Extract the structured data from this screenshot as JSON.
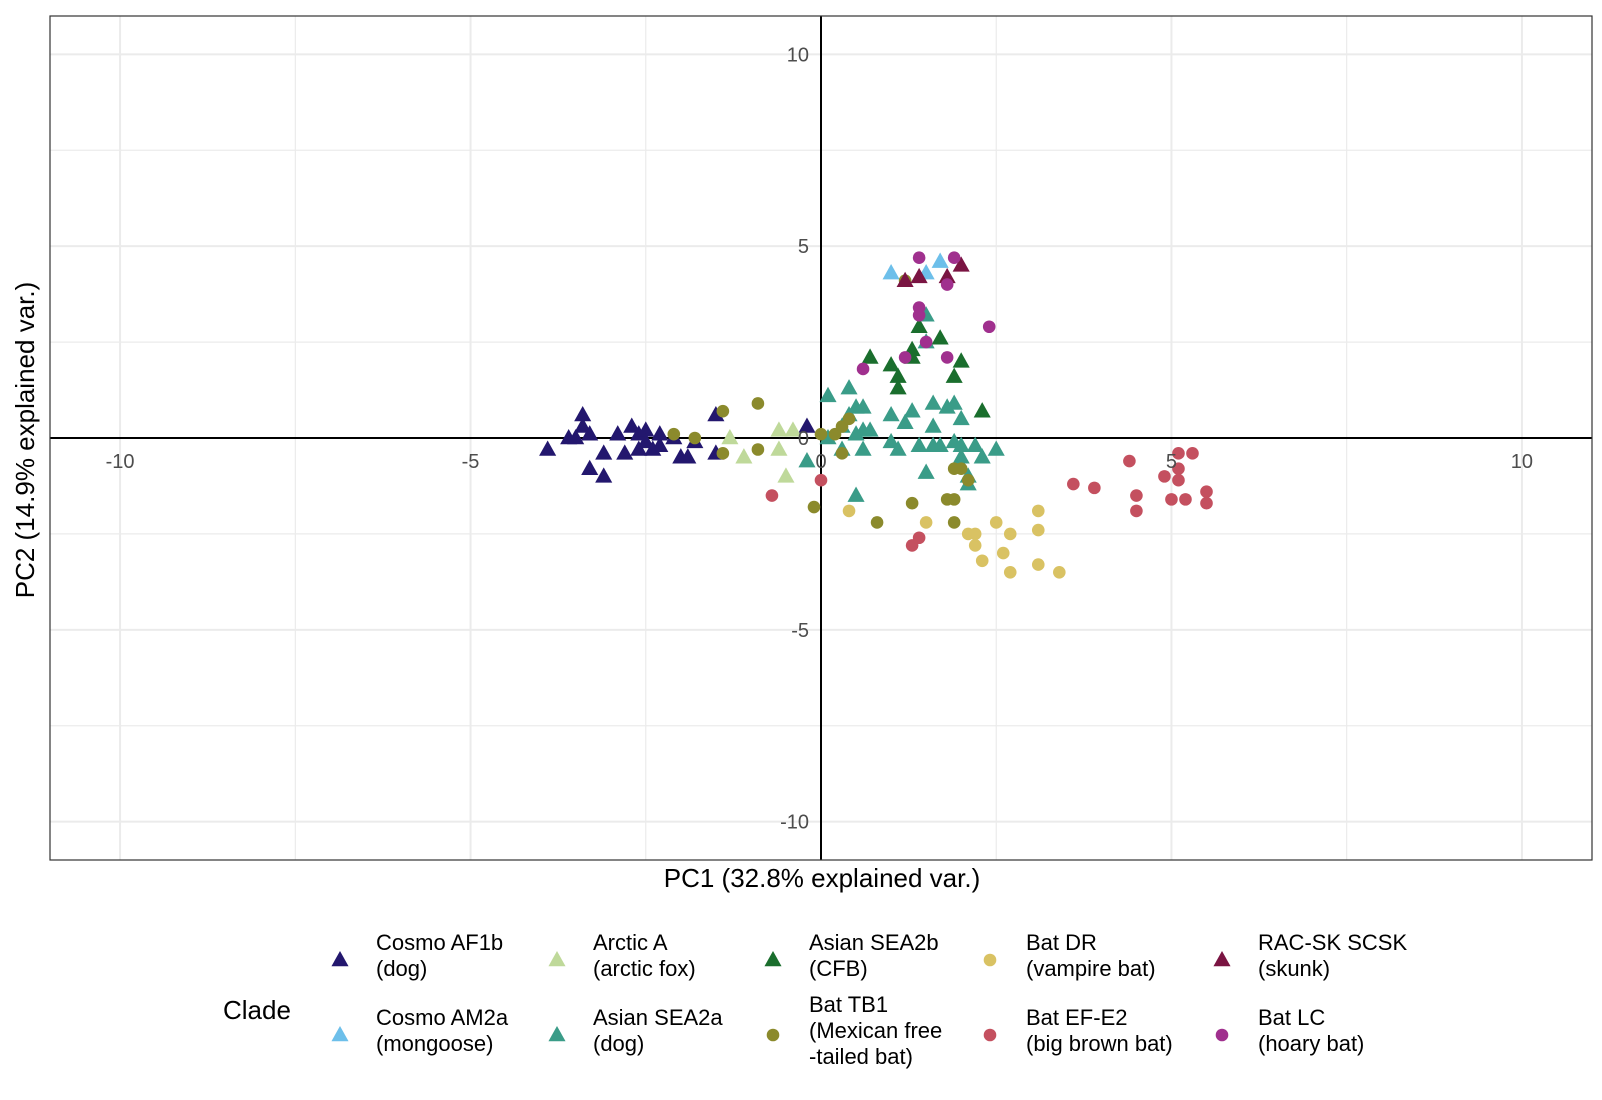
{
  "chart_data": {
    "type": "scatter",
    "xlabel": "PC1 (32.8% explained var.)",
    "ylabel": "PC2 (14.9% explained var.)",
    "xlim": [
      -11,
      11
    ],
    "ylim": [
      -11,
      11
    ],
    "xticks": [
      -10,
      -5,
      0,
      5,
      10
    ],
    "yticks": [
      -10,
      -5,
      0,
      5,
      10
    ],
    "grid": true,
    "zero_lines": true,
    "legend": {
      "title": "Clade",
      "position": "bottom"
    },
    "series": [
      {
        "name": "Cosmo AF1b (dog)",
        "label_lines": [
          "Cosmo AF1b",
          "(dog)"
        ],
        "color": "#23176e",
        "shape": "triangle",
        "points": [
          [
            -3.9,
            -0.3
          ],
          [
            -3.6,
            0.0
          ],
          [
            -3.4,
            0.6
          ],
          [
            -3.4,
            0.3
          ],
          [
            -3.3,
            0.1
          ],
          [
            -3.5,
            0.0
          ],
          [
            -3.3,
            -0.8
          ],
          [
            -3.1,
            -0.4
          ],
          [
            -3.1,
            -1.0
          ],
          [
            -2.9,
            0.1
          ],
          [
            -2.8,
            -0.4
          ],
          [
            -2.7,
            0.3
          ],
          [
            -2.6,
            0.1
          ],
          [
            -2.6,
            -0.3
          ],
          [
            -2.5,
            0.2
          ],
          [
            -2.5,
            -0.1
          ],
          [
            -2.4,
            -0.3
          ],
          [
            -2.3,
            0.1
          ],
          [
            -2.3,
            -0.2
          ],
          [
            -2.1,
            0.0
          ],
          [
            -2.0,
            -0.5
          ],
          [
            -1.9,
            -0.5
          ],
          [
            -1.8,
            -0.1
          ],
          [
            -1.5,
            0.6
          ],
          [
            -1.5,
            -0.4
          ],
          [
            -0.2,
            0.3
          ]
        ]
      },
      {
        "name": "Cosmo AM2a (mongoose)",
        "label_lines": [
          "Cosmo AM2a",
          "(mongoose)"
        ],
        "color": "#6dbfea",
        "shape": "triangle",
        "points": [
          [
            1.0,
            4.3
          ],
          [
            1.5,
            4.3
          ],
          [
            1.7,
            4.6
          ]
        ]
      },
      {
        "name": "Arctic A (arctic fox)",
        "label_lines": [
          "Arctic A",
          "(arctic fox)"
        ],
        "color": "#bfd99a",
        "shape": "triangle",
        "points": [
          [
            -1.3,
            0.0
          ],
          [
            -1.1,
            -0.5
          ],
          [
            -0.6,
            0.2
          ],
          [
            -0.4,
            0.2
          ],
          [
            -0.6,
            -0.3
          ],
          [
            -0.5,
            -1.0
          ]
        ]
      },
      {
        "name": "Asian SEA2a (dog)",
        "label_lines": [
          "Asian SEA2a",
          "(dog)"
        ],
        "color": "#3a9c88",
        "shape": "triangle",
        "points": [
          [
            -0.2,
            -0.6
          ],
          [
            0.1,
            0.0
          ],
          [
            0.1,
            1.1
          ],
          [
            0.3,
            0.3
          ],
          [
            0.3,
            -0.3
          ],
          [
            0.4,
            1.3
          ],
          [
            0.4,
            0.6
          ],
          [
            0.5,
            0.8
          ],
          [
            0.5,
            0.1
          ],
          [
            0.5,
            -1.5
          ],
          [
            0.6,
            0.2
          ],
          [
            0.6,
            -0.3
          ],
          [
            0.6,
            0.8
          ],
          [
            0.7,
            0.2
          ],
          [
            1.0,
            0.6
          ],
          [
            1.0,
            -0.1
          ],
          [
            1.1,
            -0.3
          ],
          [
            1.2,
            0.4
          ],
          [
            1.3,
            0.7
          ],
          [
            1.4,
            -0.2
          ],
          [
            1.5,
            2.5
          ],
          [
            1.5,
            3.2
          ],
          [
            1.5,
            -0.9
          ],
          [
            1.6,
            0.9
          ],
          [
            1.6,
            0.3
          ],
          [
            1.6,
            -0.2
          ],
          [
            1.7,
            -0.2
          ],
          [
            1.8,
            0.8
          ],
          [
            1.9,
            0.9
          ],
          [
            1.9,
            -0.1
          ],
          [
            2.0,
            0.5
          ],
          [
            2.0,
            -0.2
          ],
          [
            2.0,
            -0.5
          ],
          [
            2.1,
            -1.2
          ],
          [
            2.1,
            -1.0
          ],
          [
            2.2,
            -0.2
          ],
          [
            2.3,
            -0.5
          ],
          [
            2.5,
            -0.3
          ]
        ]
      },
      {
        "name": "Asian SEA2b (CFB)",
        "label_lines": [
          "Asian SEA2b",
          "(CFB)"
        ],
        "color": "#1a6e2d",
        "shape": "triangle",
        "points": [
          [
            0.7,
            2.1
          ],
          [
            1.0,
            1.9
          ],
          [
            1.1,
            1.6
          ],
          [
            1.1,
            1.3
          ],
          [
            1.3,
            2.3
          ],
          [
            1.3,
            2.1
          ],
          [
            1.4,
            2.9
          ],
          [
            1.7,
            2.6
          ],
          [
            1.9,
            1.6
          ],
          [
            2.0,
            2.0
          ],
          [
            2.3,
            0.7
          ]
        ]
      },
      {
        "name": "Bat TB1 (Mexican free-tailed bat)",
        "label_lines": [
          "Bat TB1",
          "(Mexican free",
          "-tailed bat)"
        ],
        "color": "#8b8a2c",
        "shape": "circle",
        "points": [
          [
            -2.1,
            0.1
          ],
          [
            -1.8,
            0.0
          ],
          [
            -1.4,
            0.7
          ],
          [
            -1.4,
            -0.4
          ],
          [
            -0.9,
            0.9
          ],
          [
            -0.9,
            -0.3
          ],
          [
            -0.1,
            -1.8
          ],
          [
            0.0,
            0.1
          ],
          [
            0.2,
            0.1
          ],
          [
            0.3,
            -0.4
          ],
          [
            0.3,
            0.3
          ],
          [
            0.4,
            0.5
          ],
          [
            0.8,
            -2.2
          ],
          [
            1.2,
            4.1
          ],
          [
            1.3,
            -1.7
          ],
          [
            1.8,
            -1.6
          ],
          [
            1.9,
            -1.6
          ],
          [
            1.9,
            -2.2
          ],
          [
            1.9,
            -0.8
          ],
          [
            2.0,
            -0.8
          ],
          [
            2.1,
            -1.1
          ]
        ]
      },
      {
        "name": "Bat DR (vampire bat)",
        "label_lines": [
          "Bat DR",
          "(vampire bat)"
        ],
        "color": "#d9c263",
        "shape": "circle",
        "points": [
          [
            0.4,
            -1.9
          ],
          [
            1.5,
            -2.2
          ],
          [
            2.1,
            -2.5
          ],
          [
            2.2,
            -2.8
          ],
          [
            2.2,
            -2.5
          ],
          [
            2.3,
            -3.2
          ],
          [
            2.5,
            -2.2
          ],
          [
            2.6,
            -3.0
          ],
          [
            2.7,
            -3.5
          ],
          [
            2.7,
            -2.5
          ],
          [
            3.1,
            -1.9
          ],
          [
            3.1,
            -3.3
          ],
          [
            3.1,
            -2.4
          ],
          [
            3.4,
            -3.5
          ]
        ]
      },
      {
        "name": "Bat EF-E2 (big brown bat)",
        "label_lines": [
          "Bat EF-E2",
          "(big brown bat)"
        ],
        "color": "#c4505f",
        "shape": "circle",
        "points": [
          [
            -0.7,
            -1.5
          ],
          [
            0.0,
            -1.1
          ],
          [
            1.3,
            -2.8
          ],
          [
            1.4,
            -2.6
          ],
          [
            3.6,
            -1.2
          ],
          [
            3.9,
            -1.3
          ],
          [
            4.4,
            -0.6
          ],
          [
            4.5,
            -1.5
          ],
          [
            4.5,
            -1.9
          ],
          [
            4.9,
            -1.0
          ],
          [
            5.0,
            -1.6
          ],
          [
            5.1,
            -0.4
          ],
          [
            5.1,
            -0.8
          ],
          [
            5.1,
            -1.1
          ],
          [
            5.2,
            -1.6
          ],
          [
            5.3,
            -0.4
          ],
          [
            5.5,
            -1.4
          ],
          [
            5.5,
            -1.7
          ]
        ]
      },
      {
        "name": "RAC-SK SCSK (skunk)",
        "label_lines": [
          "RAC-SK SCSK",
          "(skunk)"
        ],
        "color": "#7a1442",
        "shape": "triangle",
        "points": [
          [
            1.2,
            4.1
          ],
          [
            1.4,
            4.2
          ],
          [
            1.8,
            4.2
          ],
          [
            2.0,
            4.5
          ]
        ]
      },
      {
        "name": "Bat LC (hoary bat)",
        "label_lines": [
          "Bat LC",
          "(hoary bat)"
        ],
        "color": "#a0308e",
        "shape": "circle",
        "points": [
          [
            0.6,
            1.8
          ],
          [
            1.2,
            2.1
          ],
          [
            1.4,
            4.7
          ],
          [
            1.4,
            3.2
          ],
          [
            1.4,
            3.4
          ],
          [
            1.5,
            2.5
          ],
          [
            1.8,
            2.1
          ],
          [
            1.8,
            4.0
          ],
          [
            1.9,
            4.7
          ],
          [
            2.4,
            2.9
          ]
        ]
      }
    ]
  }
}
